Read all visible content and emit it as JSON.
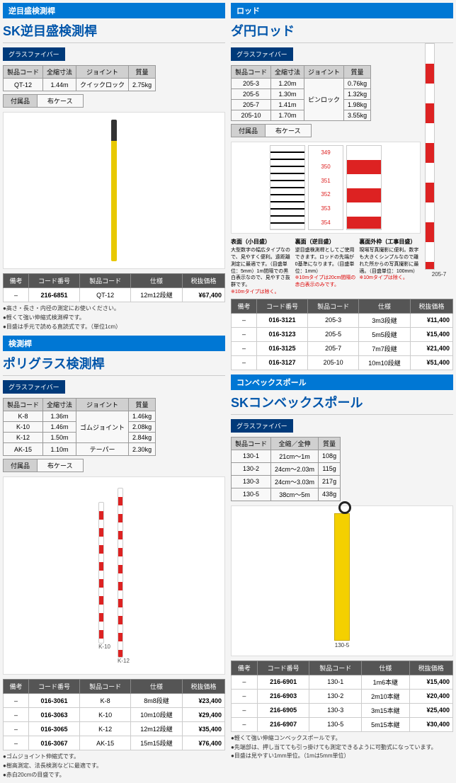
{
  "left_top": {
    "tab": "逆目盛検測桿",
    "title": "SK逆目盛検測桿",
    "badge": "グラスファイバー",
    "spec_headers": [
      "製品コード",
      "全縮寸法",
      "ジョイント",
      "質量"
    ],
    "spec_rows": [
      [
        "QT-12",
        "1.44m",
        "クイックロック",
        "2.75kg"
      ]
    ],
    "accessory_label": "付属品",
    "accessory_val": "布ケース",
    "price_headers": [
      "備考",
      "コード番号",
      "製品コード",
      "仕様",
      "税抜価格"
    ],
    "price_rows": [
      [
        "–",
        "216-6851",
        "QT-12",
        "12m12段継",
        "¥67,400"
      ]
    ],
    "notes": [
      "高さ・長さ・内径の測定にお使いください。",
      "軽くて強い伸縮式検測桿です。",
      "目盛は手元で読める直読式です。（単位1cm）"
    ]
  },
  "left_bottom": {
    "tab": "検測桿",
    "title": "ポリグラス検測桿",
    "badge": "グラスファイバー",
    "spec_headers": [
      "製品コード",
      "全縮寸法",
      "ジョイント",
      "質量"
    ],
    "spec_rows": [
      [
        "K-8",
        "1.36m",
        "ゴムジョイント",
        "1.46kg"
      ],
      [
        "K-10",
        "1.46m",
        "",
        "2.08kg"
      ],
      [
        "K-12",
        "1.50m",
        "",
        "2.84kg"
      ],
      [
        "AK-15",
        "1.10m",
        "テーパー",
        "2.30kg"
      ]
    ],
    "accessory_label": "付属品",
    "accessory_val": "布ケース",
    "img_labels": [
      "K-10",
      "K-12"
    ],
    "price_headers": [
      "備考",
      "コード番号",
      "製品コード",
      "仕様",
      "税抜価格"
    ],
    "price_rows": [
      [
        "–",
        "016-3061",
        "K-8",
        "8m8段継",
        "¥23,400"
      ],
      [
        "–",
        "016-3063",
        "K-10",
        "10m10段継",
        "¥29,400"
      ],
      [
        "–",
        "016-3065",
        "K-12",
        "12m12段継",
        "¥35,400"
      ],
      [
        "–",
        "016-3067",
        "AK-15",
        "15m15段継",
        "¥76,400"
      ]
    ],
    "notes": [
      "ゴムジョイント伸縮式です。",
      "樹高測定、法長検測などに最適です。",
      "赤白20cmの目盛です。"
    ]
  },
  "right_top": {
    "tab": "ロッド",
    "title": "ダ円ロッド",
    "badge": "グラスファイバー",
    "spec_headers": [
      "製品コード",
      "全縮寸法",
      "ジョイント",
      "質量"
    ],
    "spec_rows": [
      [
        "205-3",
        "1.20m",
        "ピンロック",
        "0.76kg"
      ],
      [
        "205-5",
        "1.30m",
        "",
        "1.32kg"
      ],
      [
        "205-7",
        "1.41m",
        "",
        "1.98kg"
      ],
      [
        "205-10",
        "1.70m",
        "",
        "3.55kg"
      ]
    ],
    "accessory_label": "付属品",
    "accessory_val": "布ケース",
    "desc": [
      {
        "title": "表面（小目盛）",
        "body": "大型数字の幅広タイプなので、見やすく便利。遠距離測定に最適です。（目盛単位：5mm）1m間隔での黒白表示なので、見やすさ抜群です。",
        "red": "※10mタイプは除く。"
      },
      {
        "title": "裏面（逆目盛）",
        "body": "逆目盛検測桿としてご使用できます。ロッドの先端が0基準になります。（目盛単位：1mm）",
        "red": "※10mタイプは20cm間隔の赤白表示のみです。"
      },
      {
        "title": "裏面外枠（工事目盛）",
        "body": "現場写真撮影に便利。数字も大きくシンプルなので離れた所からの写真撮影に最適。（目盛単位：100mm）",
        "red": "※10mタイプは除く。"
      }
    ],
    "img_caption": "205-7",
    "price_headers": [
      "備考",
      "コード番号",
      "製品コード",
      "仕様",
      "税抜価格"
    ],
    "price_rows": [
      [
        "–",
        "016-3121",
        "205-3",
        "3m3段継",
        "¥11,400"
      ],
      [
        "–",
        "016-3123",
        "205-5",
        "5m5段継",
        "¥15,400"
      ],
      [
        "–",
        "016-3125",
        "205-7",
        "7m7段継",
        "¥21,400"
      ],
      [
        "–",
        "016-3127",
        "205-10",
        "10m10段継",
        "¥51,400"
      ]
    ]
  },
  "right_bottom": {
    "tab": "コンベックスポール",
    "title": "SKコンベックスポール",
    "badge": "グラスファイバー",
    "spec_headers": [
      "製品コード",
      "全縮／全伸",
      "質量"
    ],
    "spec_rows": [
      [
        "130-1",
        "21cm～1m",
        "108g"
      ],
      [
        "130-2",
        "24cm～2.03m",
        "115g"
      ],
      [
        "130-3",
        "24cm～3.03m",
        "217g"
      ],
      [
        "130-5",
        "38cm～5m",
        "438g"
      ]
    ],
    "img_caption": "130-5",
    "price_headers": [
      "備考",
      "コード番号",
      "製品コード",
      "仕様",
      "税抜価格"
    ],
    "price_rows": [
      [
        "–",
        "216-6901",
        "130-1",
        "1m6本継",
        "¥15,400"
      ],
      [
        "–",
        "216-6903",
        "130-2",
        "2m10本継",
        "¥20,400"
      ],
      [
        "–",
        "216-6905",
        "130-3",
        "3m15本継",
        "¥25,400"
      ],
      [
        "–",
        "216-6907",
        "130-5",
        "5m15本継",
        "¥30,400"
      ]
    ],
    "notes": [
      "軽くて強い伸縮コンベックスポールです。",
      "先端部は、押し当てても引っ掛けても測定できるように可動式になっています。",
      "目盛は見やすい1mm単位。（1mは5mm単位）"
    ]
  }
}
